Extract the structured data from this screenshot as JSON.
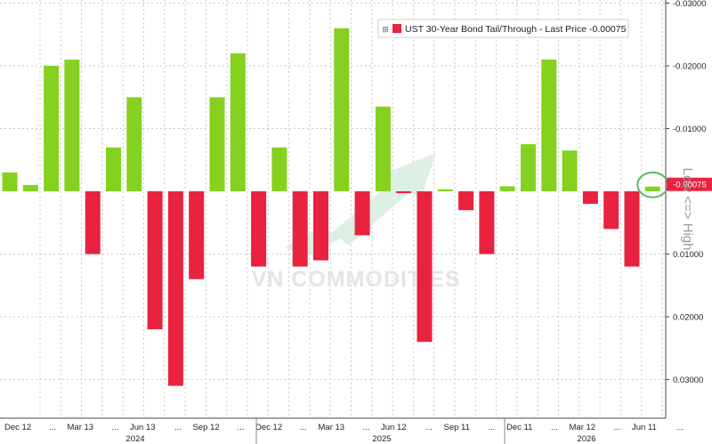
{
  "chart_data": {
    "type": "bar",
    "legend": {
      "label": "UST 30-Year Bond Tail/Through - Last Price -0.00075",
      "position": "top-right"
    },
    "last_price_label": "-0.00075",
    "side_label": "Low <=> High",
    "watermark": "VN COMMODITIES",
    "y_axis": {
      "inverted": true,
      "range": [
        -0.032,
        0.033
      ],
      "ticks": [
        {
          "value": -0.03,
          "label": "-0.03000"
        },
        {
          "value": -0.02,
          "label": "-0.02000"
        },
        {
          "value": -0.01,
          "label": "-0.01000"
        },
        {
          "value": 0.01,
          "label": "0.01000"
        },
        {
          "value": 0.02,
          "label": "0.02000"
        },
        {
          "value": 0.03,
          "label": "0.03000"
        }
      ]
    },
    "x_ticks": [
      "Dec 12",
      "...",
      "Mar 13",
      "...",
      "Jun 13",
      "...",
      "Sep 12",
      "...",
      "Dec 12",
      "...",
      "Mar 13",
      "...",
      "Jun 12",
      "...",
      "Sep 11",
      "...",
      "Dec 11",
      "...",
      "Mar 12",
      "...",
      "Jun 11",
      "..."
    ],
    "years": [
      "2024",
      "2025",
      "2026"
    ],
    "grid": true,
    "colors": {
      "negative_tail": "#84d11f",
      "positive_tail": "#e8223f",
      "last_marker": "#5cb85c"
    },
    "values": [
      -0.003,
      -0.001,
      -0.02,
      -0.021,
      0.01,
      -0.007,
      -0.015,
      0.022,
      0.031,
      0.014,
      -0.015,
      -0.022,
      0.012,
      -0.007,
      0.012,
      0.011,
      -0.026,
      0.007,
      -0.0135,
      0.0003,
      0.024,
      -0.0003,
      0.003,
      0.01,
      -0.0008,
      -0.0075,
      -0.021,
      -0.0065,
      0.002,
      0.006,
      0.012,
      -0.00075
    ]
  }
}
